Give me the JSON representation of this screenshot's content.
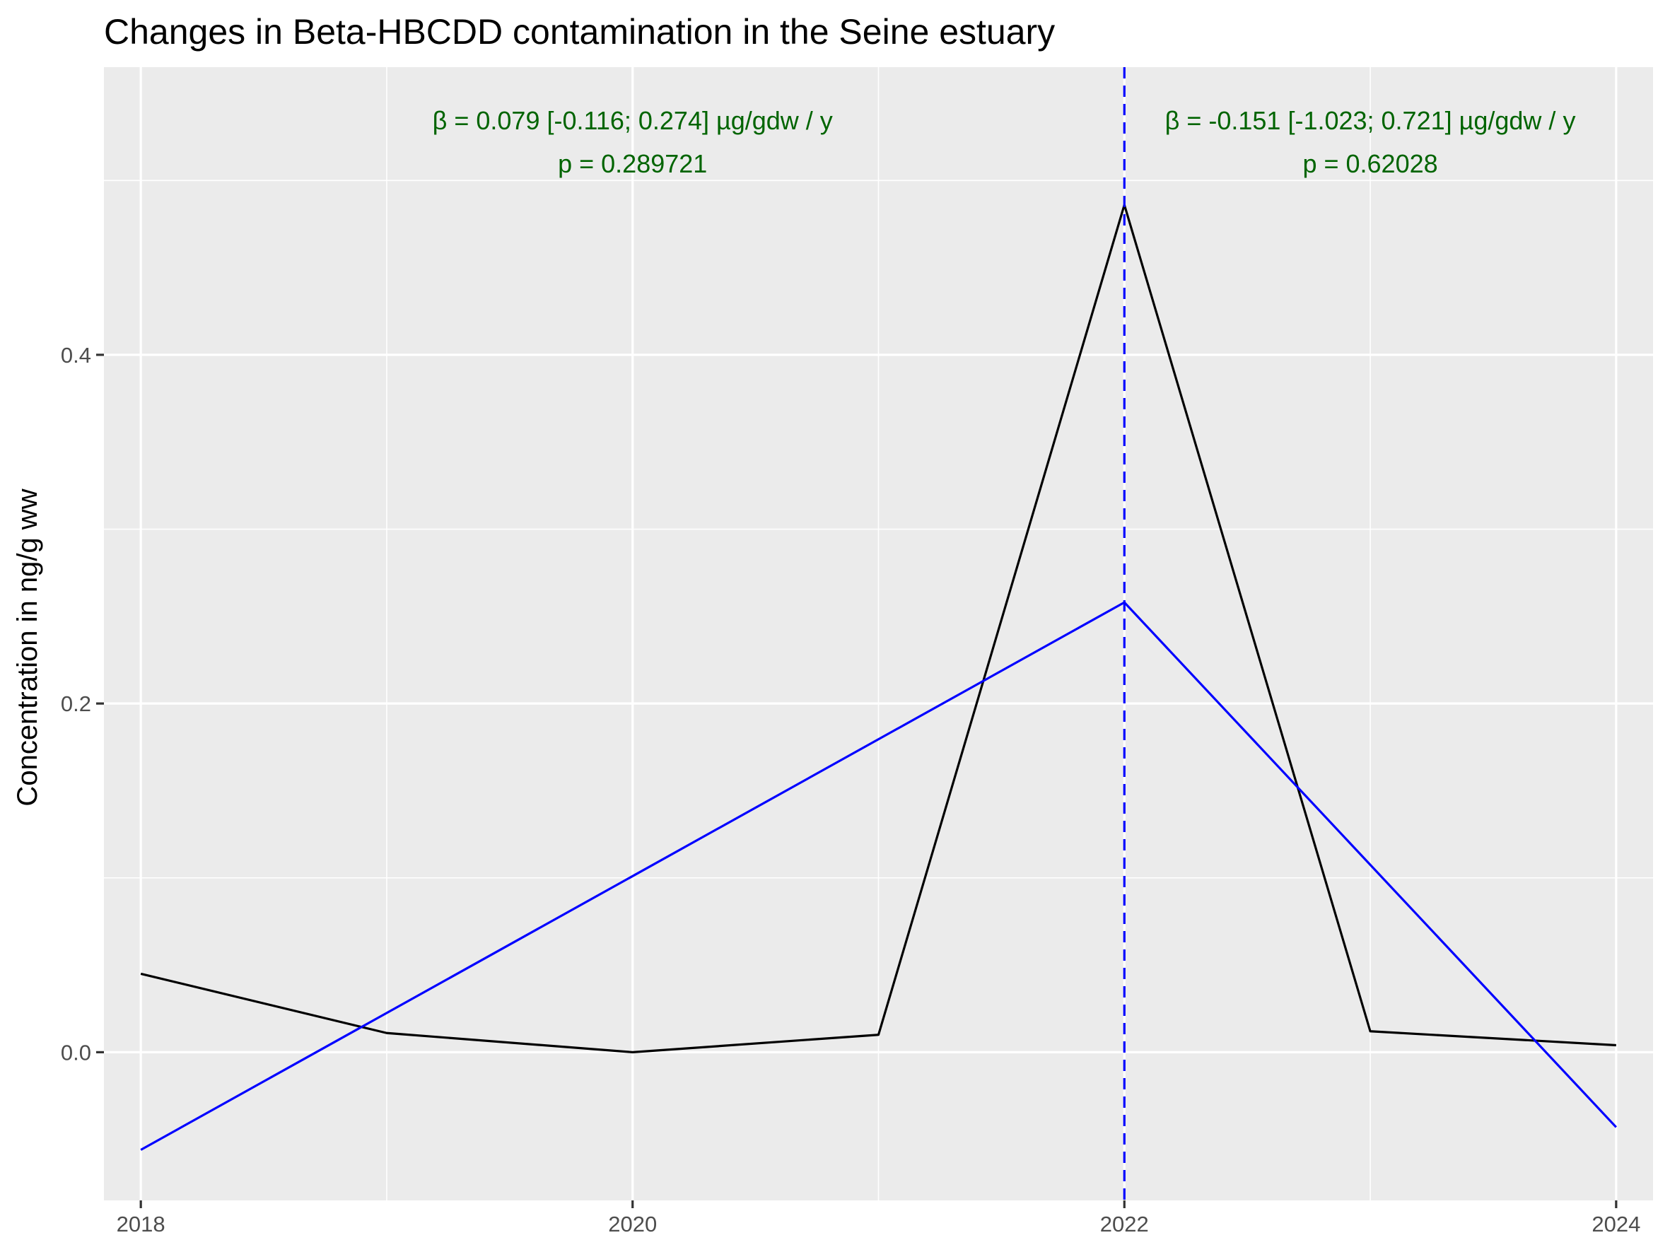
{
  "chart_data": {
    "type": "line",
    "title": "Changes in Beta-HBCDD contamination in the Seine estuary",
    "xlabel": "",
    "ylabel": "Concentration in ng/g ww",
    "xlim": [
      2017.85,
      2024.15
    ],
    "ylim": [
      -0.085,
      0.565
    ],
    "x_ticks": [
      2018,
      2020,
      2022,
      2024
    ],
    "x_tick_labels": [
      "2018",
      "2020",
      "2022",
      "2024"
    ],
    "y_ticks": [
      0.0,
      0.2,
      0.4
    ],
    "y_tick_labels": [
      "0.0",
      "0.2",
      "0.4"
    ],
    "grid": true,
    "series": [
      {
        "color": "#000000",
        "x": [
          2018,
          2019,
          2020,
          2021,
          2022,
          2023,
          2024
        ],
        "y": [
          0.045,
          0.011,
          0.0,
          0.01,
          0.486,
          0.012,
          0.004
        ]
      },
      {
        "color": "#0000ff",
        "x": [
          2018,
          2022,
          2024
        ],
        "y": [
          -0.056,
          0.258,
          -0.043
        ]
      }
    ],
    "breakpoint": {
      "x": 2022,
      "color": "#0000ff",
      "style": "dashed"
    },
    "annotations": [
      {
        "line1": "β = 0.079 [-0.116; 0.274] µg/gdw / y",
        "line2": "p = 0.289721",
        "x": 2020,
        "color": "#006400"
      },
      {
        "line1": "β = -0.151 [-1.023; 0.721] µg/gdw / y",
        "line2": "p = 0.62028",
        "x": 2023,
        "color": "#006400"
      }
    ]
  }
}
